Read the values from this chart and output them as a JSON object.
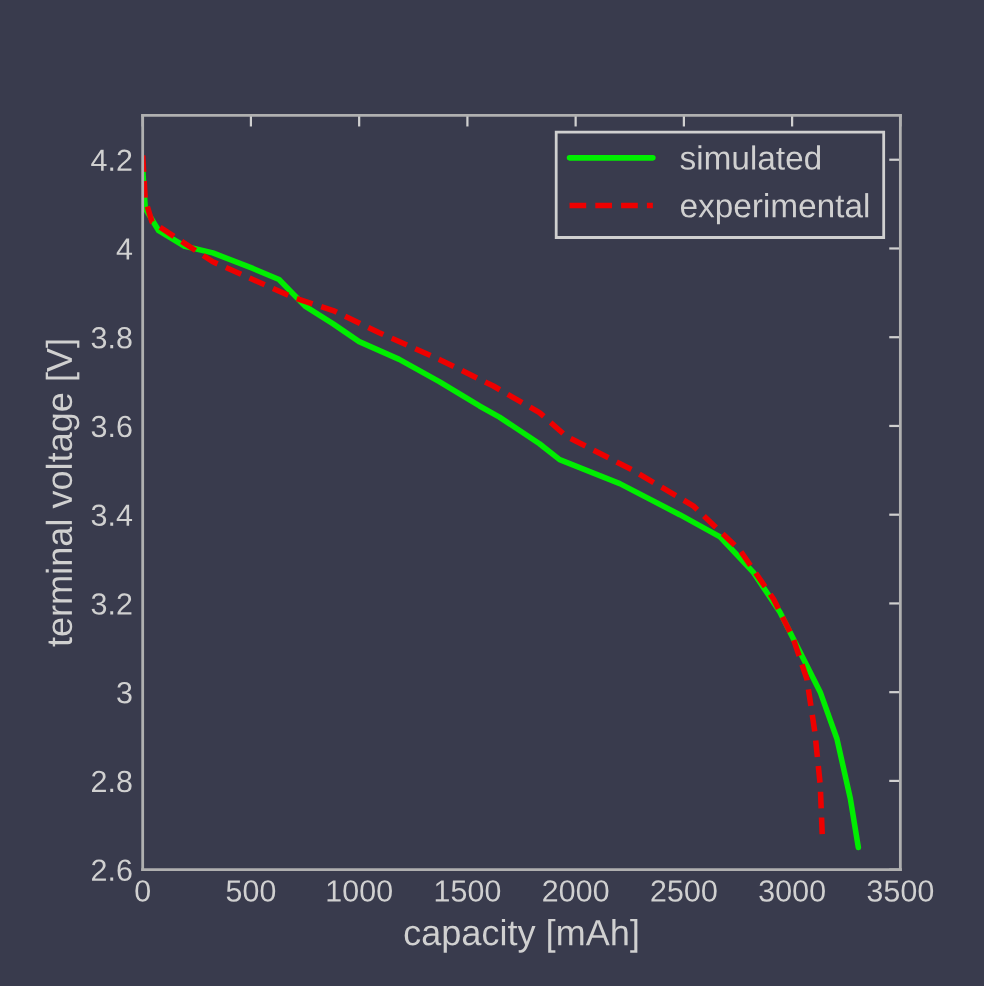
{
  "chart_data": {
    "type": "line",
    "xlabel": "capacity [mAh]",
    "ylabel": "terminal voltage [V]",
    "xlim": [
      0,
      3500
    ],
    "xticks": [
      0,
      500,
      1000,
      1500,
      2000,
      2500,
      3000,
      3500
    ],
    "ylim": [
      2.6,
      4.3
    ],
    "yticks": [
      2.6,
      2.8,
      3,
      3.2,
      3.4,
      3.6,
      3.8,
      4,
      4.2
    ],
    "grid": false,
    "legend": "top right",
    "series": [
      {
        "name": "simulated",
        "color": "#00ee00",
        "line_style": "solid",
        "x": [
          0,
          12,
          74,
          194,
          324,
          509,
          630,
          750,
          880,
          1000,
          1185,
          1370,
          1556,
          1648,
          1833,
          1926,
          2204,
          2481,
          2667,
          2821,
          2944,
          3037,
          3130,
          3207,
          3269,
          3306
        ],
        "values": [
          4.18,
          4.09,
          4.04,
          4.005,
          3.99,
          3.955,
          3.93,
          3.87,
          3.83,
          3.79,
          3.75,
          3.7,
          3.645,
          3.62,
          3.56,
          3.524,
          3.47,
          3.4,
          3.35,
          3.27,
          3.18,
          3.09,
          3.0,
          2.895,
          2.76,
          2.65
        ]
      },
      {
        "name": "experimental",
        "color": "#ee0000",
        "line_style": "dashed",
        "x": [
          0,
          12,
          43,
          167,
          324,
          509,
          694,
          880,
          1093,
          1370,
          1620,
          1833,
          1956,
          2265,
          2543,
          2759,
          2914,
          3006,
          3068,
          3105,
          3130,
          3139
        ],
        "values": [
          4.21,
          4.11,
          4.06,
          4.02,
          3.97,
          3.93,
          3.89,
          3.86,
          3.81,
          3.75,
          3.69,
          3.63,
          3.577,
          3.5,
          3.42,
          3.32,
          3.21,
          3.12,
          3.03,
          2.91,
          2.79,
          2.68
        ]
      }
    ]
  }
}
